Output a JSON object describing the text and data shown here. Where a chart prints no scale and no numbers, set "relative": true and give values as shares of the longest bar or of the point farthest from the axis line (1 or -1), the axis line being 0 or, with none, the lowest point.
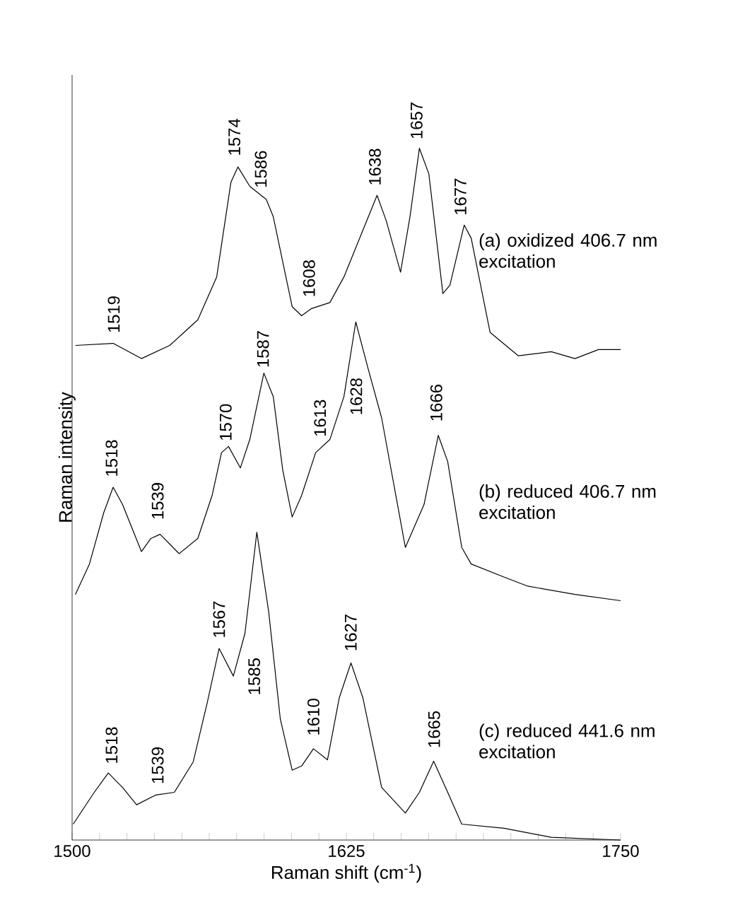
{
  "chart_data": {
    "type": "line",
    "relative": true,
    "xlabel": "Raman shift (cm$^{-1}$)",
    "ylabel": "Raman intensity",
    "xlim": [
      1500,
      1750
    ],
    "xticks": [
      1500,
      {
        "value": 1512.5,
        "label": null
      },
      {
        "value": 1525,
        "label": null
      },
      {
        "value": 1537.5,
        "label": null
      },
      {
        "value": 1550,
        "label": null
      },
      {
        "value": 1562.5,
        "label": null
      },
      {
        "value": 1575,
        "label": null
      },
      {
        "value": 1587.5,
        "label": null
      },
      {
        "value": 1600,
        "label": null
      },
      {
        "value": 1612.5,
        "label": null
      },
      1625,
      {
        "value": 1637.5,
        "label": null
      },
      {
        "value": 1650,
        "label": null
      },
      {
        "value": 1662.5,
        "label": null
      },
      {
        "value": 1675,
        "label": null
      },
      {
        "value": 1687.5,
        "label": null
      },
      {
        "value": 1700,
        "label": null
      },
      {
        "value": 1712.5,
        "label": null
      },
      {
        "value": 1725,
        "label": null
      },
      {
        "value": 1737.5,
        "label": null
      },
      1750
    ],
    "series": [
      {
        "name": "(a)  oxidized 406.7 nm excitation",
        "color": "#000000",
        "x": [
          1501.5,
          1518.7,
          1531.6,
          1544.5,
          1557.3,
          1565.9,
          1572.4,
          1575.6,
          1581.0,
          1588.5,
          1591.7,
          1600.3,
          1604.6,
          1608.9,
          1617.5,
          1623.9,
          1630.3,
          1639.0,
          1643.2,
          1649.7,
          1654.0,
          1658.3,
          1662.6,
          1669.0,
          1672.2,
          1678.7,
          1681.9,
          1690.5,
          1703.4,
          1718.4,
          1729.2,
          1739.9,
          1750
        ],
        "values": [
          0.715,
          0.718,
          0.696,
          0.715,
          0.752,
          0.814,
          0.951,
          0.973,
          0.945,
          0.926,
          0.901,
          0.771,
          0.758,
          0.768,
          0.777,
          0.814,
          0.864,
          0.932,
          0.895,
          0.821,
          0.901,
          1.0,
          0.963,
          0.79,
          0.802,
          0.889,
          0.87,
          0.734,
          0.7,
          0.706,
          0.696,
          0.709,
          0.709
        ]
      },
      {
        "name": "(b)  reduced 406.7 nm excitation",
        "color": "#000000",
        "x": [
          1501.5,
          1507.9,
          1514.4,
          1518.7,
          1523.0,
          1531.6,
          1535.9,
          1540.1,
          1548.8,
          1557.3,
          1563.8,
          1568.1,
          1571.3,
          1576.7,
          1581.0,
          1587.4,
          1591.7,
          1596.0,
          1600.3,
          1604.6,
          1611.0,
          1617.5,
          1623.9,
          1629.3,
          1634.7,
          1641.1,
          1651.9,
          1660.4,
          1666.9,
          1671.2,
          1677.6,
          1681.9,
          1697.0,
          1707.7,
          1729.2,
          1750
        ],
        "values": [
          0.355,
          0.399,
          0.473,
          0.51,
          0.485,
          0.417,
          0.436,
          0.442,
          0.414,
          0.436,
          0.498,
          0.56,
          0.569,
          0.538,
          0.579,
          0.675,
          0.641,
          0.535,
          0.467,
          0.498,
          0.56,
          0.579,
          0.641,
          0.749,
          0.684,
          0.61,
          0.423,
          0.485,
          0.585,
          0.547,
          0.423,
          0.399,
          0.38,
          0.367,
          0.355,
          0.346
        ]
      },
      {
        "name": "(c)  reduced 441.6 nm excitation",
        "color": "#000000",
        "x": [
          1500.5,
          1510.1,
          1516.5,
          1523.0,
          1529.4,
          1538.0,
          1546.6,
          1555.2,
          1561.7,
          1567.0,
          1573.5,
          1578.8,
          1584.2,
          1589.6,
          1594.9,
          1600.3,
          1604.6,
          1610.0,
          1616.4,
          1621.8,
          1627.1,
          1632.5,
          1641.1,
          1651.9,
          1658.3,
          1664.8,
          1671.2,
          1677.6,
          1697.0,
          1718.4,
          1750
        ],
        "values": [
          0.023,
          0.069,
          0.097,
          0.076,
          0.051,
          0.065,
          0.069,
          0.113,
          0.2,
          0.277,
          0.237,
          0.299,
          0.445,
          0.33,
          0.175,
          0.101,
          0.107,
          0.132,
          0.116,
          0.206,
          0.256,
          0.206,
          0.076,
          0.039,
          0.069,
          0.114,
          0.069,
          0.023,
          0.017,
          0.004,
          0.0
        ]
      }
    ],
    "annotations": [
      {
        "text": "1519",
        "x": 1519,
        "y": 0.718
      },
      {
        "text": "1574",
        "x": 1574,
        "y": 0.962
      },
      {
        "text": "1586",
        "x": 1586,
        "y": 0.93
      },
      {
        "text": "1608",
        "x": 1608,
        "y": 0.766
      },
      {
        "text": "1638",
        "x": 1638,
        "y": 0.925
      },
      {
        "text": "1657",
        "x": 1657,
        "y": 0.99
      },
      {
        "text": "1677",
        "x": 1677,
        "y": 0.88
      },
      {
        "text": "1518",
        "x": 1518,
        "y": 0.51
      },
      {
        "text": "1539",
        "x": 1539,
        "y": 0.44
      },
      {
        "text": "1570",
        "x": 1570,
        "y": 0.566
      },
      {
        "text": "1587",
        "x": 1587,
        "y": 0.67
      },
      {
        "text": "1613",
        "x": 1613,
        "y": 0.566
      },
      "1628",
      {
        "text": "1666",
        "x": 1666,
        "y": 0.58
      },
      {
        "text": "1518",
        "x": 1518,
        "y": 0.095
      },
      {
        "text": "1539",
        "x": 1539,
        "y": 0.066
      },
      {
        "text": "1567",
        "x": 1567,
        "y": 0.277
      },
      "1585",
      {
        "text": "1610",
        "x": 1610,
        "y": 0.132
      },
      {
        "text": "1627",
        "x": 1627,
        "y": 0.256
      },
      {
        "text": "1665",
        "x": 1665,
        "y": 0.114
      }
    ]
  }
}
